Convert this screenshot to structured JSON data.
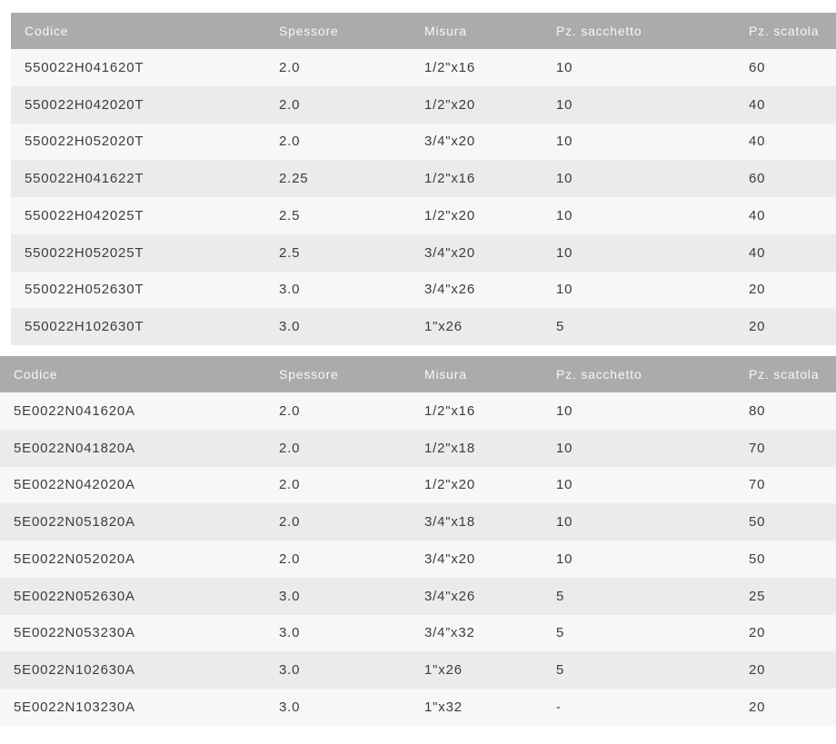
{
  "colors": {
    "header_bg": "#ababab",
    "header_text": "#f7f7f7",
    "row_odd_bg": "#f7f7f7",
    "row_even_bg": "#ebebeb",
    "body_text": "#3c3c3c",
    "page_bg": "#ffffff"
  },
  "tables": [
    {
      "name": "product-table-T-series",
      "columns": [
        "Codice",
        "Spessore",
        "Misura",
        "Pz. sacchetto",
        "Pz. scatola"
      ],
      "rows": [
        [
          "550022H041620T",
          "2.0",
          "1/2\"x16",
          "10",
          "60"
        ],
        [
          "550022H042020T",
          "2.0",
          "1/2\"x20",
          "10",
          "40"
        ],
        [
          "550022H052020T",
          "2.0",
          "3/4\"x20",
          "10",
          "40"
        ],
        [
          "550022H041622T",
          "2.25",
          "1/2\"x16",
          "10",
          "60"
        ],
        [
          "550022H042025T",
          "2.5",
          "1/2\"x20",
          "10",
          "40"
        ],
        [
          "550022H052025T",
          "2.5",
          "3/4\"x20",
          "10",
          "40"
        ],
        [
          "550022H052630T",
          "3.0",
          "3/4\"x26",
          "10",
          "20"
        ],
        [
          "550022H102630T",
          "3.0",
          "1\"x26",
          "5",
          "20"
        ]
      ]
    },
    {
      "name": "product-table-A-series",
      "columns": [
        "Codice",
        "Spessore",
        "Misura",
        "Pz. sacchetto",
        "Pz. scatola"
      ],
      "rows": [
        [
          "5E0022N041620A",
          "2.0",
          "1/2\"x16",
          "10",
          "80"
        ],
        [
          "5E0022N041820A",
          "2.0",
          "1/2\"x18",
          "10",
          "70"
        ],
        [
          "5E0022N042020A",
          "2.0",
          "1/2\"x20",
          "10",
          "70"
        ],
        [
          "5E0022N051820A",
          "2.0",
          "3/4\"x18",
          "10",
          "50"
        ],
        [
          "5E0022N052020A",
          "2.0",
          "3/4\"x20",
          "10",
          "50"
        ],
        [
          "5E0022N052630A",
          "3.0",
          "3/4\"x26",
          "5",
          "25"
        ],
        [
          "5E0022N053230A",
          "3.0",
          "3/4”x32",
          "5",
          "20"
        ],
        [
          "5E0022N102630A",
          "3.0",
          "1\"x26",
          "5",
          "20"
        ],
        [
          "5E0022N103230A",
          "3.0",
          "1\"x32",
          "-",
          "20"
        ]
      ]
    }
  ]
}
